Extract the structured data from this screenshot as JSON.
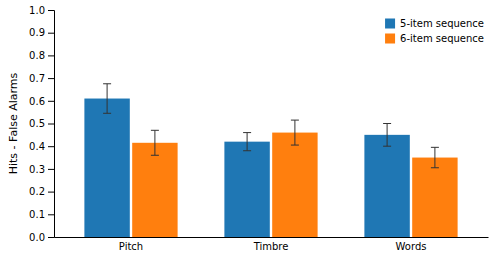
{
  "chart_data": {
    "type": "bar",
    "categories": [
      "Pitch",
      "Timbre",
      "Words"
    ],
    "series": [
      {
        "name": "5-item sequence",
        "values": [
          0.61,
          0.42,
          0.45
        ],
        "errors": [
          0.065,
          0.04,
          0.05
        ]
      },
      {
        "name": "6-item sequence",
        "values": [
          0.415,
          0.46,
          0.35
        ],
        "errors": [
          0.055,
          0.055,
          0.045
        ]
      }
    ],
    "ylabel": "Hits - False Alarms",
    "ylim": [
      0.0,
      1.0
    ],
    "yticks": [
      {
        "value": 0,
        "label": "0.0"
      },
      0.1,
      0.2,
      0.3,
      0.4,
      0.5,
      0.6,
      0.7,
      0.8,
      0.9,
      {
        "value": 1,
        "label": "1.0"
      }
    ],
    "grid": false,
    "legend": "upper right"
  }
}
